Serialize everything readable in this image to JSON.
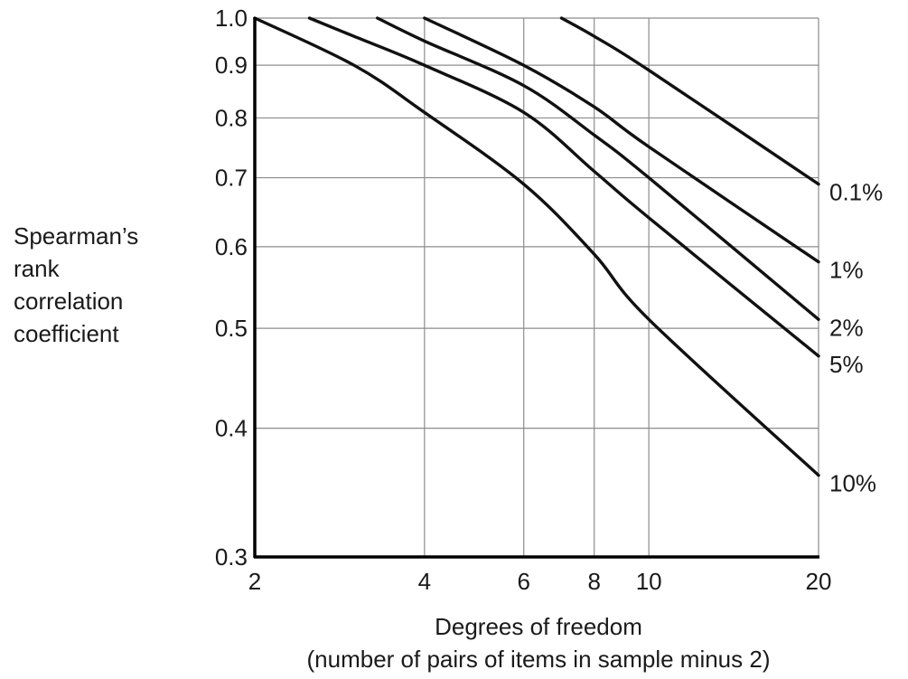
{
  "chart_data": {
    "type": "line",
    "x_scale": "log",
    "y_scale": "log",
    "xlim": [
      2,
      20
    ],
    "ylim": [
      0.3,
      1.0
    ],
    "grid": true,
    "x_gridlines": [
      4,
      6,
      8,
      10
    ],
    "y_gridlines": [
      0.4,
      0.5,
      0.6,
      0.7,
      0.8,
      0.9
    ],
    "xticks": [
      {
        "value": 2,
        "label": "2"
      },
      {
        "value": 4,
        "label": "4"
      },
      {
        "value": 6,
        "label": "6"
      },
      {
        "value": 8,
        "label": "8"
      },
      {
        "value": 10,
        "label": "10"
      },
      {
        "value": 20,
        "label": "20"
      }
    ],
    "yticks": [
      {
        "value": 1.0,
        "label": "1.0"
      },
      {
        "value": 0.9,
        "label": "0.9"
      },
      {
        "value": 0.8,
        "label": "0.8"
      },
      {
        "value": 0.7,
        "label": "0.7"
      },
      {
        "value": 0.6,
        "label": "0.6"
      },
      {
        "value": 0.5,
        "label": "0.5"
      },
      {
        "value": 0.4,
        "label": "0.4"
      },
      {
        "value": 0.3,
        "label": "0.3"
      }
    ],
    "xlabel": "Degrees of freedom",
    "xlabel_line2": "(number of pairs of items in sample minus 2)",
    "ylabel_lines": [
      "Spearman’s",
      "rank",
      "correlation",
      "coefficient"
    ],
    "series": [
      {
        "name": "10%",
        "x": [
          2,
          3,
          4,
          6,
          8,
          10,
          20
        ],
        "y": [
          1.0,
          0.9,
          0.81,
          0.69,
          0.59,
          0.51,
          0.36
        ]
      },
      {
        "name": "5%",
        "x": [
          2.5,
          3,
          4,
          6,
          8,
          10,
          20
        ],
        "y": [
          1.0,
          0.96,
          0.9,
          0.81,
          0.71,
          0.64,
          0.47
        ]
      },
      {
        "name": "2%",
        "x": [
          3.3,
          4,
          6,
          8,
          10,
          20
        ],
        "y": [
          1.0,
          0.95,
          0.86,
          0.77,
          0.7,
          0.51
        ]
      },
      {
        "name": "1%",
        "x": [
          4,
          6,
          8,
          10,
          20
        ],
        "y": [
          1.0,
          0.9,
          0.82,
          0.75,
          0.58
        ]
      },
      {
        "name": "0.1%",
        "x": [
          7,
          8,
          10,
          20
        ],
        "y": [
          1.0,
          0.96,
          0.89,
          0.69
        ]
      }
    ]
  }
}
